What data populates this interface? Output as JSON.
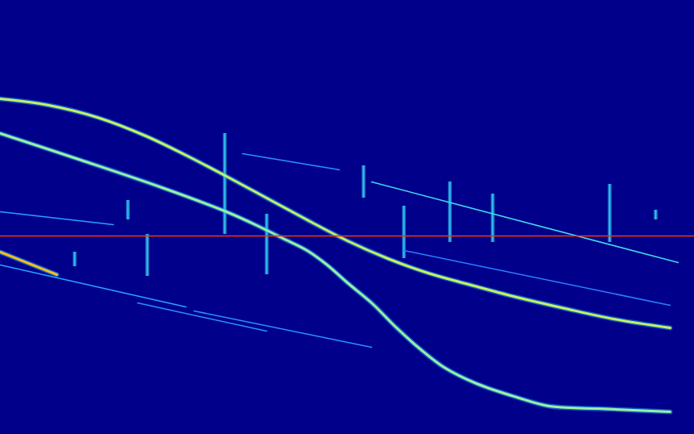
{
  "chart_data": {
    "type": "spectrogram",
    "color": "#00008b",
    "xlim": [
      0,
      860
    ],
    "ylim": [
      0,
      538
    ],
    "tick_labels": false,
    "grid": false,
    "series": [
      {
        "color": "#c8f060",
        "line_style": "bold",
        "values": [
          [
            0,
            416
          ],
          [
            60,
            408
          ],
          [
            120,
            393
          ],
          [
            180,
            370
          ],
          [
            230,
            346
          ],
          [
            280,
            320
          ],
          [
            330,
            293
          ],
          [
            380,
            266
          ],
          [
            430,
            240
          ],
          [
            480,
            218
          ],
          [
            530,
            200
          ],
          [
            580,
            186
          ],
          [
            640,
            170
          ],
          [
            700,
            156
          ],
          [
            760,
            143
          ],
          [
            830,
            132
          ]
        ]
      },
      {
        "color": "#9af0a0",
        "line_style": "bold",
        "values": [
          [
            0,
            373
          ],
          [
            100,
            340
          ],
          [
            200,
            306
          ],
          [
            280,
            276
          ],
          [
            320,
            258
          ],
          [
            350,
            243
          ],
          [
            380,
            228
          ],
          [
            405,
            210
          ],
          [
            430,
            188
          ],
          [
            460,
            163
          ],
          [
            490,
            133
          ],
          [
            520,
            106
          ],
          [
            550,
            83
          ],
          [
            590,
            63
          ],
          [
            640,
            46
          ],
          [
            680,
            35
          ],
          [
            740,
            32
          ],
          [
            830,
            28
          ]
        ]
      },
      {
        "color": "#f0c020",
        "line_style": "bold",
        "values": [
          [
            0,
            226
          ],
          [
            40,
            210
          ],
          [
            70,
            198
          ]
        ]
      },
      {
        "color": "#2aa0ff",
        "line_style": "solid",
        "values": [
          [
            0,
            210
          ],
          [
            230,
            158
          ]
        ]
      },
      {
        "color": "#2aa0ff",
        "line_style": "solid",
        "values": [
          [
            0,
            276
          ],
          [
            140,
            260
          ]
        ]
      },
      {
        "color": "#40d8e8",
        "line_style": "solid",
        "values": [
          [
            460,
            313
          ],
          [
            840,
            213
          ]
        ]
      },
      {
        "color": "#2a90ff",
        "line_style": "solid",
        "values": [
          [
            240,
            153
          ],
          [
            460,
            108
          ]
        ]
      },
      {
        "color": "#2a90ff",
        "line_style": "solid",
        "values": [
          [
            170,
            163
          ],
          [
            330,
            128
          ]
        ]
      },
      {
        "color": "#2a90ff",
        "line_style": "solid",
        "values": [
          [
            300,
            348
          ],
          [
            420,
            328
          ]
        ]
      },
      {
        "color": "#2a80ff",
        "line_style": "solid",
        "values": [
          [
            500,
            228
          ],
          [
            830,
            160
          ]
        ]
      },
      {
        "color": "#ff3000",
        "line_style": "solid",
        "values": [
          [
            0,
            246
          ],
          [
            860,
            246
          ]
        ]
      }
    ],
    "bursts": {
      "color": "#30c8f0",
      "values": [
        [
          158,
          290,
          266
        ],
        [
          182,
          248,
          196
        ],
        [
          278,
          373,
          248
        ],
        [
          330,
          273,
          198
        ],
        [
          450,
          333,
          293
        ],
        [
          500,
          283,
          218
        ],
        [
          557,
          313,
          238
        ],
        [
          610,
          298,
          238
        ],
        [
          755,
          310,
          238
        ],
        [
          92,
          226,
          208
        ],
        [
          812,
          278,
          266
        ]
      ]
    }
  }
}
